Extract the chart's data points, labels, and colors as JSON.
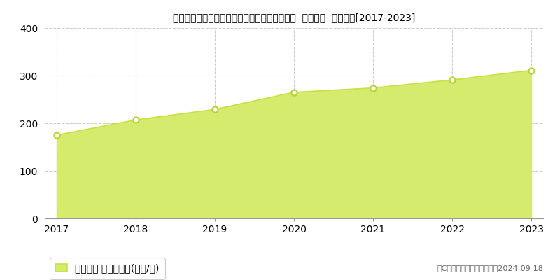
{
  "title": "北海道札幌市中央区大通西１８丁目１番２９外  公示地価  地価推移[2017-2023]",
  "years": [
    2017,
    2018,
    2019,
    2020,
    2021,
    2022,
    2023
  ],
  "values": [
    175,
    207,
    229,
    265,
    274,
    291,
    311
  ],
  "fill_color": "#d4eb6e",
  "line_color": "#c8e040",
  "marker_facecolor": "#ffffff",
  "marker_edgecolor": "#b8d030",
  "grid_color": "#cccccc",
  "bg_color": "#ffffff",
  "ylim": [
    0,
    400
  ],
  "yticks": [
    0,
    100,
    200,
    300,
    400
  ],
  "legend_label": "公示地価 平均坪単価(万円/坪)",
  "copyright_text": "（C）土地価格ドットコム　2024-09-18",
  "title_fontsize": 13,
  "tick_fontsize": 10,
  "legend_fontsize": 10,
  "copyright_fontsize": 8
}
